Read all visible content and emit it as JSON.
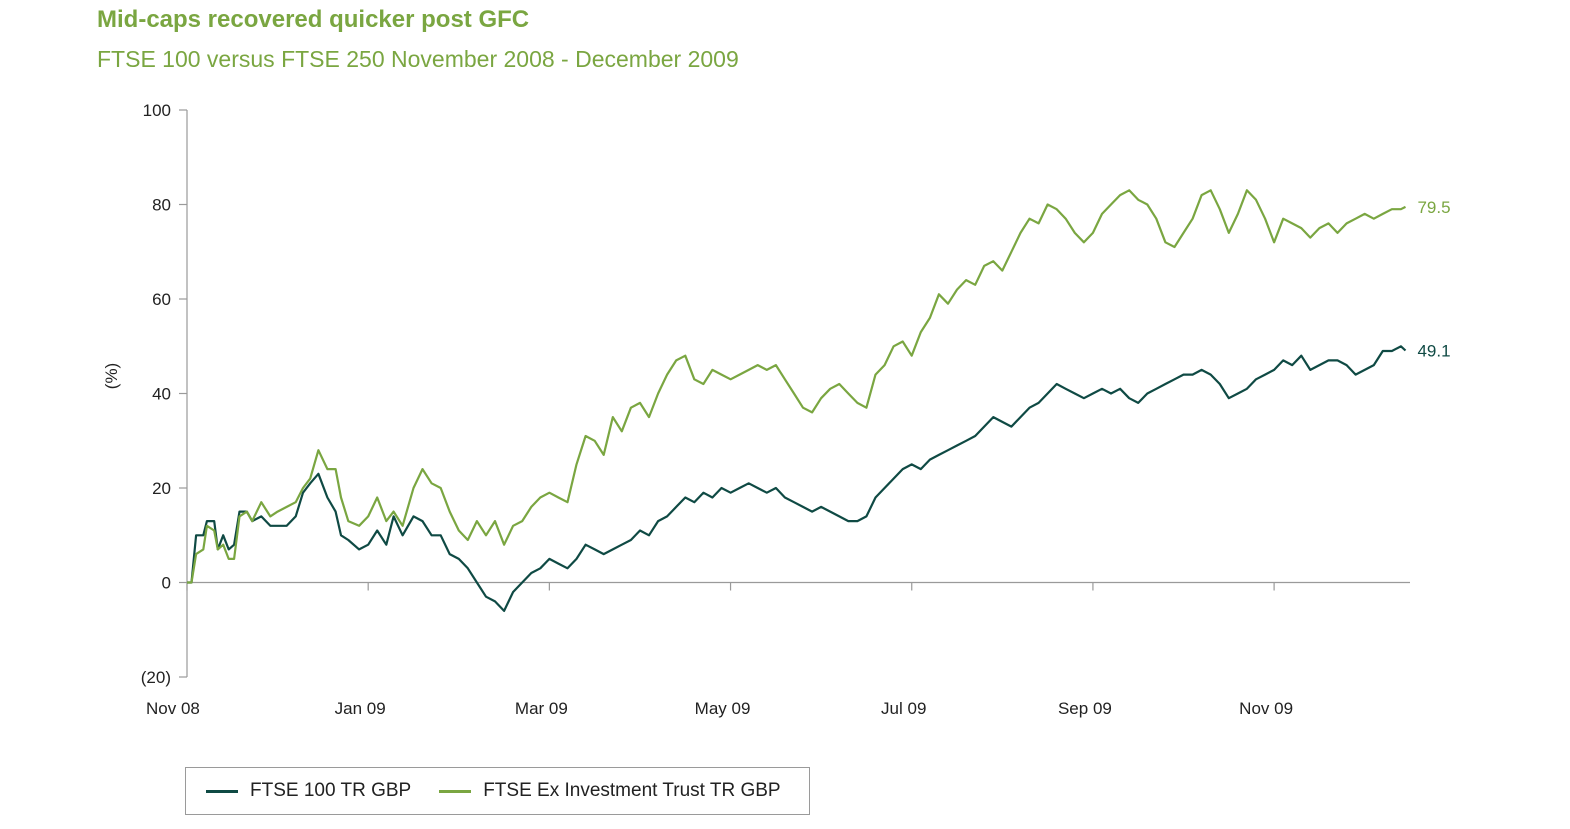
{
  "title": "Mid-caps recovered quicker post GFC",
  "subtitle": "FTSE 100 versus FTSE 250 November 2008 - December 2009",
  "colors": {
    "ftse100": "#0f4a44",
    "ftse250": "#7aa641",
    "axis": "#9a9a9a"
  },
  "chart_data": {
    "type": "line",
    "title": "Mid-caps recovered quicker post GFC",
    "subtitle": "FTSE 100 versus FTSE 250 November 2008 - December 2009",
    "xlabel": "",
    "ylabel": "(%)",
    "ylim": [
      -20,
      100
    ],
    "yticks": [
      100,
      80,
      60,
      40,
      20,
      0,
      -20
    ],
    "ytick_labels": [
      "100",
      "80",
      "60",
      "40",
      "20",
      "0",
      "(20)"
    ],
    "x_domain_months": [
      0,
      13.5
    ],
    "xticks": [
      {
        "m": 0,
        "label": "Nov 08"
      },
      {
        "m": 2,
        "label": "Jan 09"
      },
      {
        "m": 4,
        "label": "Mar 09"
      },
      {
        "m": 6,
        "label": "May 09"
      },
      {
        "m": 8,
        "label": "Jul 09"
      },
      {
        "m": 10,
        "label": "Sep 09"
      },
      {
        "m": 12,
        "label": "Nov 09"
      }
    ],
    "series": [
      {
        "name": "FTSE 100 TR GBP",
        "color": "#0f4a44",
        "end_label": "49.1",
        "points": [
          [
            0.0,
            0
          ],
          [
            0.05,
            0
          ],
          [
            0.1,
            10
          ],
          [
            0.18,
            10
          ],
          [
            0.22,
            13
          ],
          [
            0.3,
            13
          ],
          [
            0.34,
            7
          ],
          [
            0.4,
            10
          ],
          [
            0.46,
            7
          ],
          [
            0.52,
            8
          ],
          [
            0.58,
            15
          ],
          [
            0.66,
            15
          ],
          [
            0.72,
            13
          ],
          [
            0.82,
            14
          ],
          [
            0.92,
            12
          ],
          [
            1.0,
            12
          ],
          [
            1.1,
            12
          ],
          [
            1.2,
            14
          ],
          [
            1.28,
            19
          ],
          [
            1.36,
            21
          ],
          [
            1.45,
            23
          ],
          [
            1.55,
            18
          ],
          [
            1.64,
            15
          ],
          [
            1.7,
            10
          ],
          [
            1.78,
            9
          ],
          [
            1.9,
            7
          ],
          [
            2.0,
            8
          ],
          [
            2.1,
            11
          ],
          [
            2.2,
            8
          ],
          [
            2.28,
            14
          ],
          [
            2.38,
            10
          ],
          [
            2.5,
            14
          ],
          [
            2.6,
            13
          ],
          [
            2.7,
            10
          ],
          [
            2.8,
            10
          ],
          [
            2.9,
            6
          ],
          [
            3.0,
            5
          ],
          [
            3.1,
            3
          ],
          [
            3.2,
            0
          ],
          [
            3.3,
            -3
          ],
          [
            3.4,
            -4
          ],
          [
            3.5,
            -6
          ],
          [
            3.6,
            -2
          ],
          [
            3.7,
            0
          ],
          [
            3.8,
            2
          ],
          [
            3.9,
            3
          ],
          [
            4.0,
            5
          ],
          [
            4.1,
            4
          ],
          [
            4.2,
            3
          ],
          [
            4.3,
            5
          ],
          [
            4.4,
            8
          ],
          [
            4.5,
            7
          ],
          [
            4.6,
            6
          ],
          [
            4.7,
            7
          ],
          [
            4.8,
            8
          ],
          [
            4.9,
            9
          ],
          [
            5.0,
            11
          ],
          [
            5.1,
            10
          ],
          [
            5.2,
            13
          ],
          [
            5.3,
            14
          ],
          [
            5.4,
            16
          ],
          [
            5.5,
            18
          ],
          [
            5.6,
            17
          ],
          [
            5.7,
            19
          ],
          [
            5.8,
            18
          ],
          [
            5.9,
            20
          ],
          [
            6.0,
            19
          ],
          [
            6.1,
            20
          ],
          [
            6.2,
            21
          ],
          [
            6.3,
            20
          ],
          [
            6.4,
            19
          ],
          [
            6.5,
            20
          ],
          [
            6.6,
            18
          ],
          [
            6.7,
            17
          ],
          [
            6.8,
            16
          ],
          [
            6.9,
            15
          ],
          [
            7.0,
            16
          ],
          [
            7.1,
            15
          ],
          [
            7.2,
            14
          ],
          [
            7.3,
            13
          ],
          [
            7.4,
            13
          ],
          [
            7.5,
            14
          ],
          [
            7.6,
            18
          ],
          [
            7.7,
            20
          ],
          [
            7.8,
            22
          ],
          [
            7.9,
            24
          ],
          [
            8.0,
            25
          ],
          [
            8.1,
            24
          ],
          [
            8.2,
            26
          ],
          [
            8.3,
            27
          ],
          [
            8.4,
            28
          ],
          [
            8.5,
            29
          ],
          [
            8.6,
            30
          ],
          [
            8.7,
            31
          ],
          [
            8.8,
            33
          ],
          [
            8.9,
            35
          ],
          [
            9.0,
            34
          ],
          [
            9.1,
            33
          ],
          [
            9.2,
            35
          ],
          [
            9.3,
            37
          ],
          [
            9.4,
            38
          ],
          [
            9.5,
            40
          ],
          [
            9.6,
            42
          ],
          [
            9.7,
            41
          ],
          [
            9.8,
            40
          ],
          [
            9.9,
            39
          ],
          [
            10.0,
            40
          ],
          [
            10.1,
            41
          ],
          [
            10.2,
            40
          ],
          [
            10.3,
            41
          ],
          [
            10.4,
            39
          ],
          [
            10.5,
            38
          ],
          [
            10.6,
            40
          ],
          [
            10.7,
            41
          ],
          [
            10.8,
            42
          ],
          [
            10.9,
            43
          ],
          [
            11.0,
            44
          ],
          [
            11.1,
            44
          ],
          [
            11.2,
            45
          ],
          [
            11.3,
            44
          ],
          [
            11.4,
            42
          ],
          [
            11.5,
            39
          ],
          [
            11.6,
            40
          ],
          [
            11.7,
            41
          ],
          [
            11.8,
            43
          ],
          [
            11.9,
            44
          ],
          [
            12.0,
            45
          ],
          [
            12.1,
            47
          ],
          [
            12.2,
            46
          ],
          [
            12.3,
            48
          ],
          [
            12.4,
            45
          ],
          [
            12.5,
            46
          ],
          [
            12.6,
            47
          ],
          [
            12.7,
            47
          ],
          [
            12.8,
            46
          ],
          [
            12.9,
            44
          ],
          [
            13.0,
            45
          ],
          [
            13.1,
            46
          ],
          [
            13.2,
            49
          ],
          [
            13.3,
            49
          ],
          [
            13.4,
            50
          ],
          [
            13.45,
            49.1
          ]
        ]
      },
      {
        "name": "FTSE Ex Investment Trust TR GBP",
        "color": "#7aa641",
        "end_label": "79.5",
        "points": [
          [
            0.0,
            0
          ],
          [
            0.05,
            0
          ],
          [
            0.1,
            6
          ],
          [
            0.18,
            7
          ],
          [
            0.22,
            12
          ],
          [
            0.3,
            11
          ],
          [
            0.34,
            7
          ],
          [
            0.4,
            8
          ],
          [
            0.46,
            5
          ],
          [
            0.52,
            5
          ],
          [
            0.58,
            14
          ],
          [
            0.66,
            15
          ],
          [
            0.72,
            13
          ],
          [
            0.82,
            17
          ],
          [
            0.92,
            14
          ],
          [
            1.0,
            15
          ],
          [
            1.1,
            16
          ],
          [
            1.2,
            17
          ],
          [
            1.28,
            20
          ],
          [
            1.36,
            22
          ],
          [
            1.45,
            28
          ],
          [
            1.55,
            24
          ],
          [
            1.64,
            24
          ],
          [
            1.7,
            18
          ],
          [
            1.78,
            13
          ],
          [
            1.9,
            12
          ],
          [
            2.0,
            14
          ],
          [
            2.1,
            18
          ],
          [
            2.2,
            13
          ],
          [
            2.28,
            15
          ],
          [
            2.38,
            12
          ],
          [
            2.5,
            20
          ],
          [
            2.6,
            24
          ],
          [
            2.7,
            21
          ],
          [
            2.8,
            20
          ],
          [
            2.9,
            15
          ],
          [
            3.0,
            11
          ],
          [
            3.1,
            9
          ],
          [
            3.2,
            13
          ],
          [
            3.3,
            10
          ],
          [
            3.4,
            13
          ],
          [
            3.5,
            8
          ],
          [
            3.6,
            12
          ],
          [
            3.7,
            13
          ],
          [
            3.8,
            16
          ],
          [
            3.9,
            18
          ],
          [
            4.0,
            19
          ],
          [
            4.1,
            18
          ],
          [
            4.2,
            17
          ],
          [
            4.3,
            25
          ],
          [
            4.4,
            31
          ],
          [
            4.5,
            30
          ],
          [
            4.6,
            27
          ],
          [
            4.7,
            35
          ],
          [
            4.8,
            32
          ],
          [
            4.9,
            37
          ],
          [
            5.0,
            38
          ],
          [
            5.1,
            35
          ],
          [
            5.2,
            40
          ],
          [
            5.3,
            44
          ],
          [
            5.4,
            47
          ],
          [
            5.5,
            48
          ],
          [
            5.6,
            43
          ],
          [
            5.7,
            42
          ],
          [
            5.8,
            45
          ],
          [
            5.9,
            44
          ],
          [
            6.0,
            43
          ],
          [
            6.1,
            44
          ],
          [
            6.2,
            45
          ],
          [
            6.3,
            46
          ],
          [
            6.4,
            45
          ],
          [
            6.5,
            46
          ],
          [
            6.6,
            43
          ],
          [
            6.7,
            40
          ],
          [
            6.8,
            37
          ],
          [
            6.9,
            36
          ],
          [
            7.0,
            39
          ],
          [
            7.1,
            41
          ],
          [
            7.2,
            42
          ],
          [
            7.3,
            40
          ],
          [
            7.4,
            38
          ],
          [
            7.5,
            37
          ],
          [
            7.6,
            44
          ],
          [
            7.7,
            46
          ],
          [
            7.8,
            50
          ],
          [
            7.9,
            51
          ],
          [
            8.0,
            48
          ],
          [
            8.1,
            53
          ],
          [
            8.2,
            56
          ],
          [
            8.3,
            61
          ],
          [
            8.4,
            59
          ],
          [
            8.5,
            62
          ],
          [
            8.6,
            64
          ],
          [
            8.7,
            63
          ],
          [
            8.8,
            67
          ],
          [
            8.9,
            68
          ],
          [
            9.0,
            66
          ],
          [
            9.1,
            70
          ],
          [
            9.2,
            74
          ],
          [
            9.3,
            77
          ],
          [
            9.4,
            76
          ],
          [
            9.5,
            80
          ],
          [
            9.6,
            79
          ],
          [
            9.7,
            77
          ],
          [
            9.8,
            74
          ],
          [
            9.9,
            72
          ],
          [
            10.0,
            74
          ],
          [
            10.1,
            78
          ],
          [
            10.2,
            80
          ],
          [
            10.3,
            82
          ],
          [
            10.4,
            83
          ],
          [
            10.5,
            81
          ],
          [
            10.6,
            80
          ],
          [
            10.7,
            77
          ],
          [
            10.8,
            72
          ],
          [
            10.9,
            71
          ],
          [
            11.0,
            74
          ],
          [
            11.1,
            77
          ],
          [
            11.2,
            82
          ],
          [
            11.3,
            83
          ],
          [
            11.4,
            79
          ],
          [
            11.5,
            74
          ],
          [
            11.6,
            78
          ],
          [
            11.7,
            83
          ],
          [
            11.8,
            81
          ],
          [
            11.9,
            77
          ],
          [
            12.0,
            72
          ],
          [
            12.1,
            77
          ],
          [
            12.2,
            76
          ],
          [
            12.3,
            75
          ],
          [
            12.4,
            73
          ],
          [
            12.5,
            75
          ],
          [
            12.6,
            76
          ],
          [
            12.7,
            74
          ],
          [
            12.8,
            76
          ],
          [
            12.9,
            77
          ],
          [
            13.0,
            78
          ],
          [
            13.1,
            77
          ],
          [
            13.2,
            78
          ],
          [
            13.3,
            79
          ],
          [
            13.4,
            79
          ],
          [
            13.45,
            79.5
          ]
        ]
      }
    ],
    "legend": "bottom-left"
  }
}
